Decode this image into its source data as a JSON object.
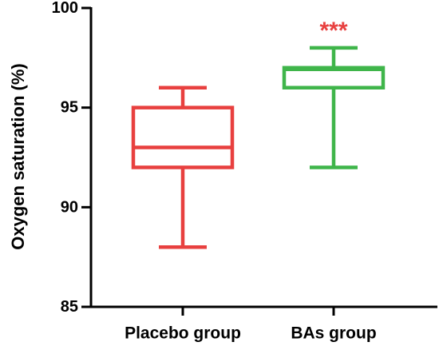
{
  "chart_data": {
    "type": "box",
    "ylabel": "Oxygen saturation (%)",
    "ylim": [
      85,
      100
    ],
    "yticks": [
      85,
      90,
      95,
      100
    ],
    "categories": [
      "Placebo group",
      "BAs group"
    ],
    "series": [
      {
        "category": "Placebo group",
        "min": 88,
        "q1": 92,
        "median": 93,
        "q3": 95,
        "max": 96,
        "color": "#e8403f"
      },
      {
        "category": "BAs group",
        "min": 92,
        "q1": 96,
        "median": 97,
        "q3": 97,
        "max": 98,
        "color": "#3fb54a",
        "significance": "***",
        "significance_color": "#e8403f"
      }
    ],
    "grid": false
  }
}
